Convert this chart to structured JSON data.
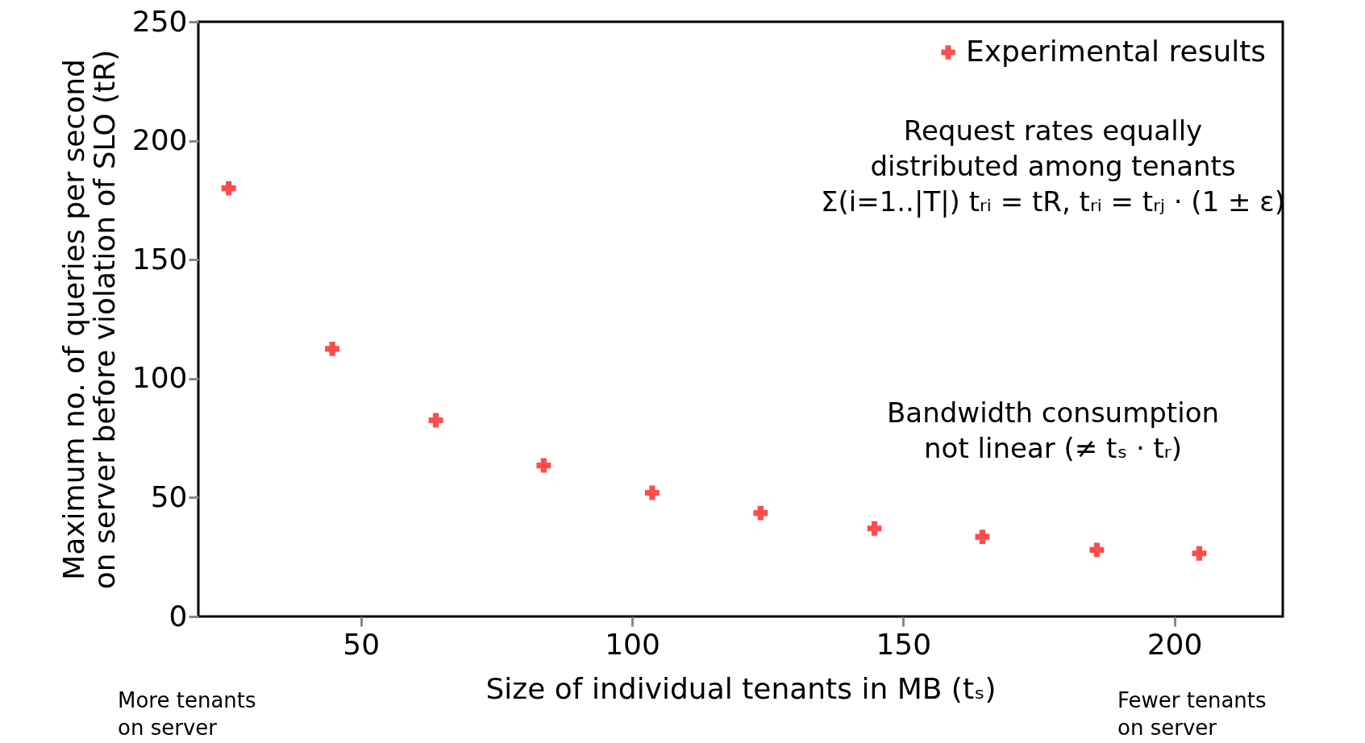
{
  "chart_data": {
    "type": "scatter",
    "xlabel": "Size of individual tenants in MB (tₛ)",
    "ylabel": "Maximum no. of queries per second\non server before violation of SLO (tR)",
    "x": [
      25.6,
      44.7,
      63.8,
      83.7,
      103.7,
      123.7,
      144.7,
      164.6,
      185.7,
      204.6
    ],
    "series": [
      {
        "name": "Experimental results",
        "color": "#ff0000",
        "values": [
          180,
          112.5,
          82.5,
          63.5,
          52,
          43.5,
          37,
          33.5,
          28,
          26.5
        ]
      }
    ],
    "xlim": [
      20,
      220
    ],
    "xticks": [
      50,
      100,
      150,
      200
    ],
    "ylim": [
      0,
      250
    ],
    "yticks": [
      0,
      50,
      100,
      150,
      200,
      250
    ],
    "marker": "cross",
    "grid": false,
    "legend": "top right",
    "annotations": [
      "Request rates equally\ndistributed among tenants\nΣ(i=1..|T|) tᵣᵢ = tR, tᵣᵢ = tᵣⱼ · (1 ± ε)",
      "Bandwidth consumption\nnot linear (≠ tₛ · tᵣ)",
      "More tenants\non server",
      "Fewer tenants\non server"
    ]
  }
}
